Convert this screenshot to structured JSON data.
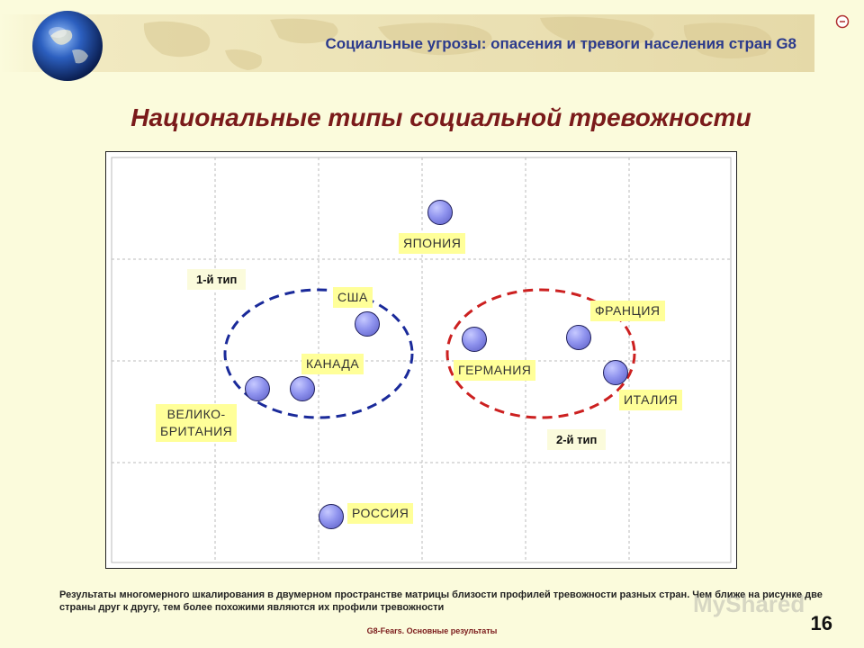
{
  "header": {
    "title": "Социальные угрозы: опасения и тревоги населения стран G8"
  },
  "main_title": "Национальные типы социальной тревожности",
  "plot": {
    "type_labels": {
      "type1": "1-й тип",
      "type2": "2-й тип"
    },
    "points": [
      {
        "label": "ЯПОНИЯ"
      },
      {
        "label": "США"
      },
      {
        "label": "КАНАДА"
      },
      {
        "label_line1": "ВЕЛИКО-",
        "label_line2": "БРИТАНИЯ"
      },
      {
        "label": "ГЕРМАНИЯ"
      },
      {
        "label": "ФРАНЦИЯ"
      },
      {
        "label": "ИТАЛИЯ"
      },
      {
        "label": "РОССИЯ"
      }
    ],
    "colors": {
      "cluster1": "#1a2a9a",
      "cluster2": "#cc2020",
      "point": "#8f93ee",
      "label_bg": "#ffff99"
    }
  },
  "caption": "Результаты многомерного шкалирования в двумерном пространстве матрицы близости профилей тревожности разных стран. Чем ближе на рисунке две страны друг к другу, тем более похожими являются их профили тревожности",
  "footer": "G8-Fears. Основные результаты",
  "page_number": "16",
  "watermark": "MyShared"
}
